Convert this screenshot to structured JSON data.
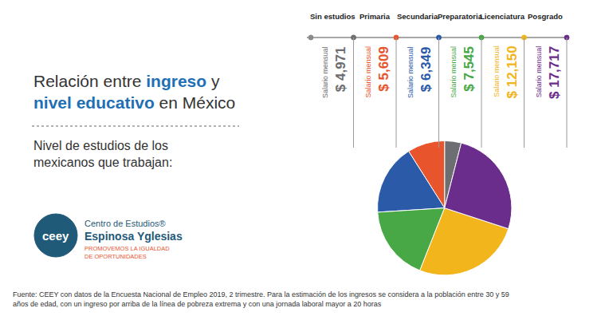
{
  "header": {
    "emphasis": [
      "ingreso",
      "nivel educativo"
    ]
  },
  "chart_data": {
    "type": "pie",
    "title": "Relación entre ingreso y nivel educativo en México",
    "subtitle": "Nivel de estudios de los mexicanos que trabajan:",
    "categories": [
      "Sin estudios",
      "Primaria",
      "Secundaria",
      "Preparatoria",
      "Licenciatura",
      "Posgrado"
    ],
    "values": [
      4,
      9,
      17,
      18,
      26,
      26
    ],
    "colors": [
      "#6d6e71",
      "#e8552d",
      "#2b5ba8",
      "#47a845",
      "#f2b51b",
      "#6b2d8c"
    ],
    "salary": {
      "label": "Salario mensual",
      "values": [
        4971,
        5609,
        6349,
        7545,
        12150,
        17717
      ],
      "value_labels": [
        "$ 4,971",
        "$ 5,609",
        "$ 6,349",
        "$ 7,545",
        "$ 12,150",
        "$ 17,717"
      ]
    }
  },
  "logo": {
    "mark": "ceey",
    "line1": "Centro de Estudios®",
    "line2": "Espinosa Yglesias",
    "tagline": "PROMOVEMOS LA IGUALDAD DE OPORTUNIDADES"
  },
  "source": "Fuente: CEEY con datos de la Encuesta Nacional de Empleo 2019, 2 trimestre. Para la estimación de los ingresos se considera a la población entre 30 y 59 años de edad, con un ingreso por arriba de la línea de pobreza extrema y con una jornada laboral mayor a 20 horas"
}
